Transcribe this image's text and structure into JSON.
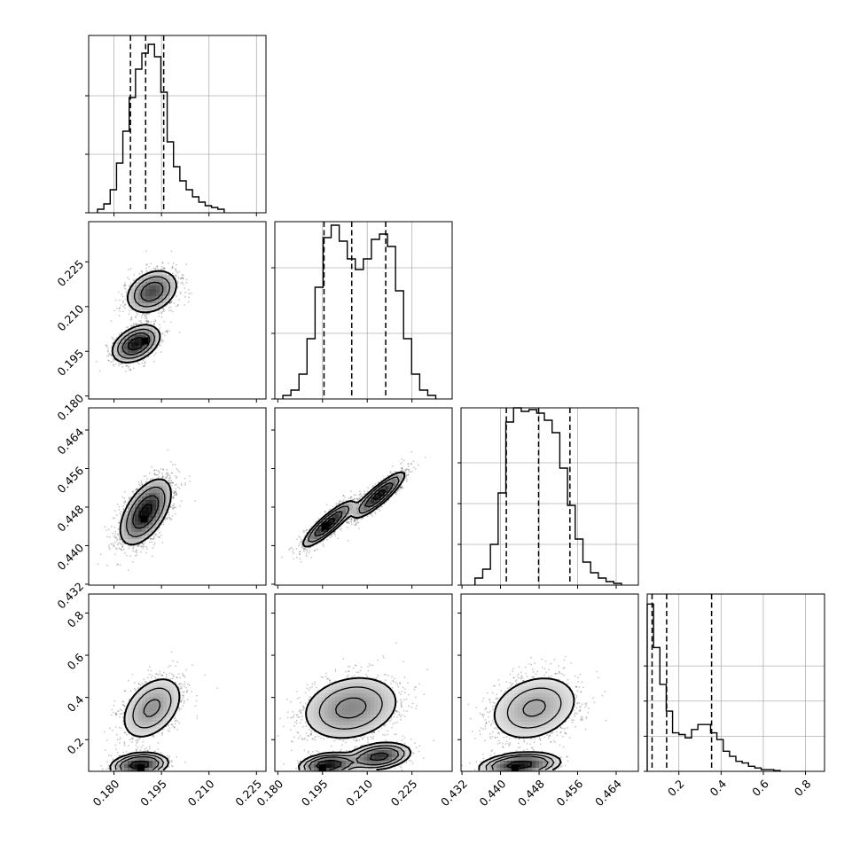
{
  "chart_data": {
    "type": "corner",
    "title": "",
    "variables": [
      {
        "range": [
          0.172,
          0.228
        ],
        "ticks": [
          "0.180",
          "0.195",
          "0.210",
          "0.225"
        ],
        "gridlines": [
          0.18,
          0.195,
          0.21,
          0.225
        ]
      },
      {
        "range": [
          0.179,
          0.2385
        ],
        "ticks": [
          "0.180",
          "0.195",
          "0.210",
          "0.225"
        ],
        "gridlines": [
          0.195,
          0.21,
          0.225
        ]
      },
      {
        "range": [
          0.4318,
          0.4686
        ],
        "ticks": [
          "0.432",
          "0.440",
          "0.448",
          "0.456",
          "0.464"
        ],
        "gridlines": [
          0.44,
          0.448,
          0.456,
          0.464
        ]
      },
      {
        "range": [
          0.05,
          0.89
        ],
        "ticks": [
          "0.2",
          "0.4",
          "0.6",
          "0.8"
        ],
        "gridlines": [
          0.2,
          0.4,
          0.6,
          0.8
        ]
      }
    ],
    "histograms": [
      {
        "variable": 0,
        "bins": [
          0.1748,
          0.1768,
          0.1788,
          0.1808,
          0.1828,
          0.1848,
          0.1868,
          0.1888,
          0.1908,
          0.1928,
          0.1948,
          0.1968,
          0.1988,
          0.2008,
          0.2028,
          0.2048,
          0.2068,
          0.2088,
          0.2108,
          0.2128,
          0.2148
        ],
        "counts": [
          0.02,
          0.05,
          0.13,
          0.28,
          0.46,
          0.65,
          0.81,
          0.9,
          0.95,
          0.88,
          0.68,
          0.4,
          0.26,
          0.18,
          0.13,
          0.09,
          0.06,
          0.04,
          0.03,
          0.02
        ],
        "ymax": 1.0,
        "quantiles": [
          0.1852,
          0.19,
          0.1957
        ],
        "gridlines": [
          0.33,
          0.66
        ]
      },
      {
        "variable": 1,
        "bins": [
          0.1817,
          0.1844,
          0.1871,
          0.1898,
          0.1925,
          0.1952,
          0.1979,
          0.2006,
          0.2033,
          0.206,
          0.2087,
          0.2114,
          0.2141,
          0.2168,
          0.2195,
          0.2222,
          0.2249,
          0.2276,
          0.2303,
          0.233
        ],
        "counts": [
          0.02,
          0.05,
          0.14,
          0.34,
          0.63,
          0.91,
          0.98,
          0.89,
          0.79,
          0.73,
          0.79,
          0.9,
          0.93,
          0.86,
          0.61,
          0.34,
          0.14,
          0.05,
          0.02
        ],
        "ymax": 1.0,
        "quantiles": [
          0.1955,
          0.2048,
          0.2162
        ],
        "gridlines": [
          0.37,
          0.74
        ]
      },
      {
        "variable": 2,
        "bins": [
          0.4347,
          0.4363,
          0.4379,
          0.4395,
          0.4411,
          0.4427,
          0.4443,
          0.4459,
          0.4475,
          0.4491,
          0.4507,
          0.4523,
          0.4539,
          0.4555,
          0.4571,
          0.4587,
          0.4603,
          0.4619,
          0.4635,
          0.4651
        ],
        "counts": [
          0.04,
          0.09,
          0.23,
          0.52,
          0.92,
          1.0,
          0.98,
          0.99,
          0.97,
          0.93,
          0.86,
          0.66,
          0.45,
          0.26,
          0.13,
          0.07,
          0.04,
          0.02,
          0.01
        ],
        "ymax": 1.0,
        "quantiles": [
          0.4412,
          0.4479,
          0.4544
        ],
        "gridlines": [
          0.23,
          0.46,
          0.69
        ]
      },
      {
        "variable": 3,
        "bins": [
          0.05,
          0.08,
          0.11,
          0.14,
          0.17,
          0.2,
          0.23,
          0.26,
          0.29,
          0.32,
          0.35,
          0.38,
          0.41,
          0.44,
          0.47,
          0.5,
          0.53,
          0.56,
          0.59,
          0.62,
          0.65,
          0.68
        ],
        "counts": [
          1.0,
          0.74,
          0.52,
          0.36,
          0.23,
          0.22,
          0.2,
          0.25,
          0.28,
          0.28,
          0.23,
          0.19,
          0.12,
          0.09,
          0.06,
          0.05,
          0.03,
          0.02,
          0.01,
          0.01,
          0.005
        ],
        "ymax": 1.06,
        "quantiles": [
          0.073,
          0.142,
          0.355
        ],
        "gridlines": [
          0.21,
          0.42,
          0.63
        ]
      }
    ],
    "scatter_panels": [
      {
        "x_var": 0,
        "y_var": 1,
        "components": [
          {
            "mx": 0.187,
            "my": 0.1975,
            "sx": 0.0036,
            "sy": 0.003,
            "r": 0.4,
            "w": 0.5
          },
          {
            "mx": 0.192,
            "my": 0.215,
            "sx": 0.004,
            "sy": 0.0036,
            "r": 0.3,
            "w": 0.5
          }
        ],
        "density_peak": [
          0.1898,
          0.1985
        ]
      },
      {
        "x_var": 0,
        "y_var": 2,
        "components": [
          {
            "mx": 0.19,
            "my": 0.447,
            "sx": 0.004,
            "sy": 0.0034,
            "r": 0.55,
            "w": 1.0
          }
        ],
        "density_peak": [
          0.1895,
          0.4455
        ]
      },
      {
        "x_var": 1,
        "y_var": 2,
        "components": [
          {
            "mx": 0.197,
            "my": 0.4445,
            "sx": 0.0045,
            "sy": 0.0025,
            "r": 0.88,
            "w": 0.5
          },
          {
            "mx": 0.214,
            "my": 0.4505,
            "sx": 0.0045,
            "sy": 0.0025,
            "r": 0.88,
            "w": 0.5
          }
        ],
        "density_peak": [
          0.196,
          0.444
        ]
      },
      {
        "x_var": 0,
        "y_var": 3,
        "components": [
          {
            "mx": 0.188,
            "my": 0.08,
            "sx": 0.004,
            "sy": 0.025,
            "r": 0.2,
            "w": 0.45
          },
          {
            "mx": 0.192,
            "my": 0.35,
            "sx": 0.0048,
            "sy": 0.075,
            "r": 0.4,
            "w": 0.55
          }
        ],
        "density_peak": [
          0.1885,
          0.065
        ]
      },
      {
        "x_var": 1,
        "y_var": 3,
        "components": [
          {
            "mx": 0.197,
            "my": 0.08,
            "sx": 0.0045,
            "sy": 0.025,
            "r": 0.2,
            "w": 0.22
          },
          {
            "mx": 0.214,
            "my": 0.12,
            "sx": 0.005,
            "sy": 0.03,
            "r": 0.3,
            "w": 0.23
          },
          {
            "mx": 0.2045,
            "my": 0.35,
            "sx": 0.0085,
            "sy": 0.08,
            "r": 0.2,
            "w": 0.55
          }
        ],
        "density_peak": [
          0.195,
          0.065
        ]
      },
      {
        "x_var": 2,
        "y_var": 3,
        "components": [
          {
            "mx": 0.444,
            "my": 0.08,
            "sx": 0.0036,
            "sy": 0.025,
            "r": 0.25,
            "w": 0.45
          },
          {
            "mx": 0.447,
            "my": 0.35,
            "sx": 0.0046,
            "sy": 0.078,
            "r": 0.25,
            "w": 0.55
          }
        ],
        "density_peak": [
          0.443,
          0.065
        ]
      }
    ]
  }
}
